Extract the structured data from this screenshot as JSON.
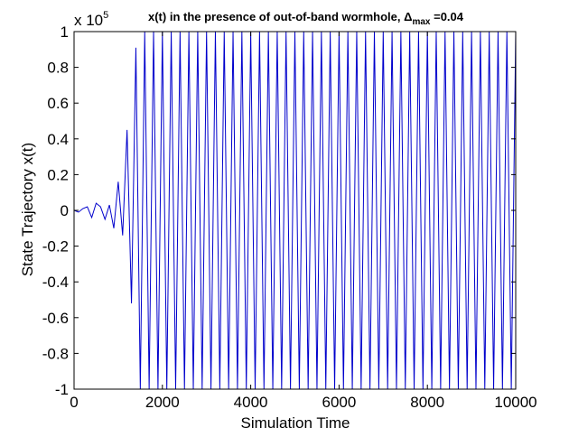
{
  "chart_data": {
    "type": "line",
    "title": "x(t) in the presence of out-of-band wormhole, Δ",
    "title_subscript": "max",
    "title_suffix": " =0.04",
    "xlabel": "Simulation Time",
    "ylabel": "State Trajectory x(t)",
    "xlim": [
      0,
      10000
    ],
    "ylim": [
      -1,
      1
    ],
    "y_scale_label": "x 10",
    "y_scale_exponent": "5",
    "xticks": [
      0,
      2000,
      4000,
      6000,
      8000,
      10000
    ],
    "xtick_labels": [
      "0",
      "2000",
      "4000",
      "6000",
      "8000",
      "10000"
    ],
    "yticks": [
      -1,
      -0.8,
      -0.6,
      -0.4,
      -0.2,
      0,
      0.2,
      0.4,
      0.6,
      0.8,
      1
    ],
    "ytick_labels": [
      "-1",
      "-0.8",
      "-0.6",
      "-0.4",
      "-0.2",
      "0",
      "0.2",
      "0.4",
      "0.6",
      "0.8",
      "1"
    ],
    "grid": false,
    "series": [
      {
        "name": "x(t)",
        "color": "#0000cc",
        "x": [
          0,
          100,
          200,
          300,
          400,
          500,
          600,
          700,
          800,
          900,
          1000,
          1100,
          1200,
          1300,
          1400,
          1500,
          1600,
          1700
        ],
        "y": [
          0,
          -0.01,
          0.01,
          0.02,
          -0.04,
          0.04,
          0.02,
          -0.05,
          0.03,
          -0.1,
          0.16,
          -0.14,
          0.45,
          -0.52,
          0.91,
          -1.0,
          1.0,
          -1.0
        ],
        "oscillation": {
          "start": 1600,
          "end": 10000,
          "period": 200,
          "min": -1,
          "max": 1
        }
      }
    ]
  }
}
